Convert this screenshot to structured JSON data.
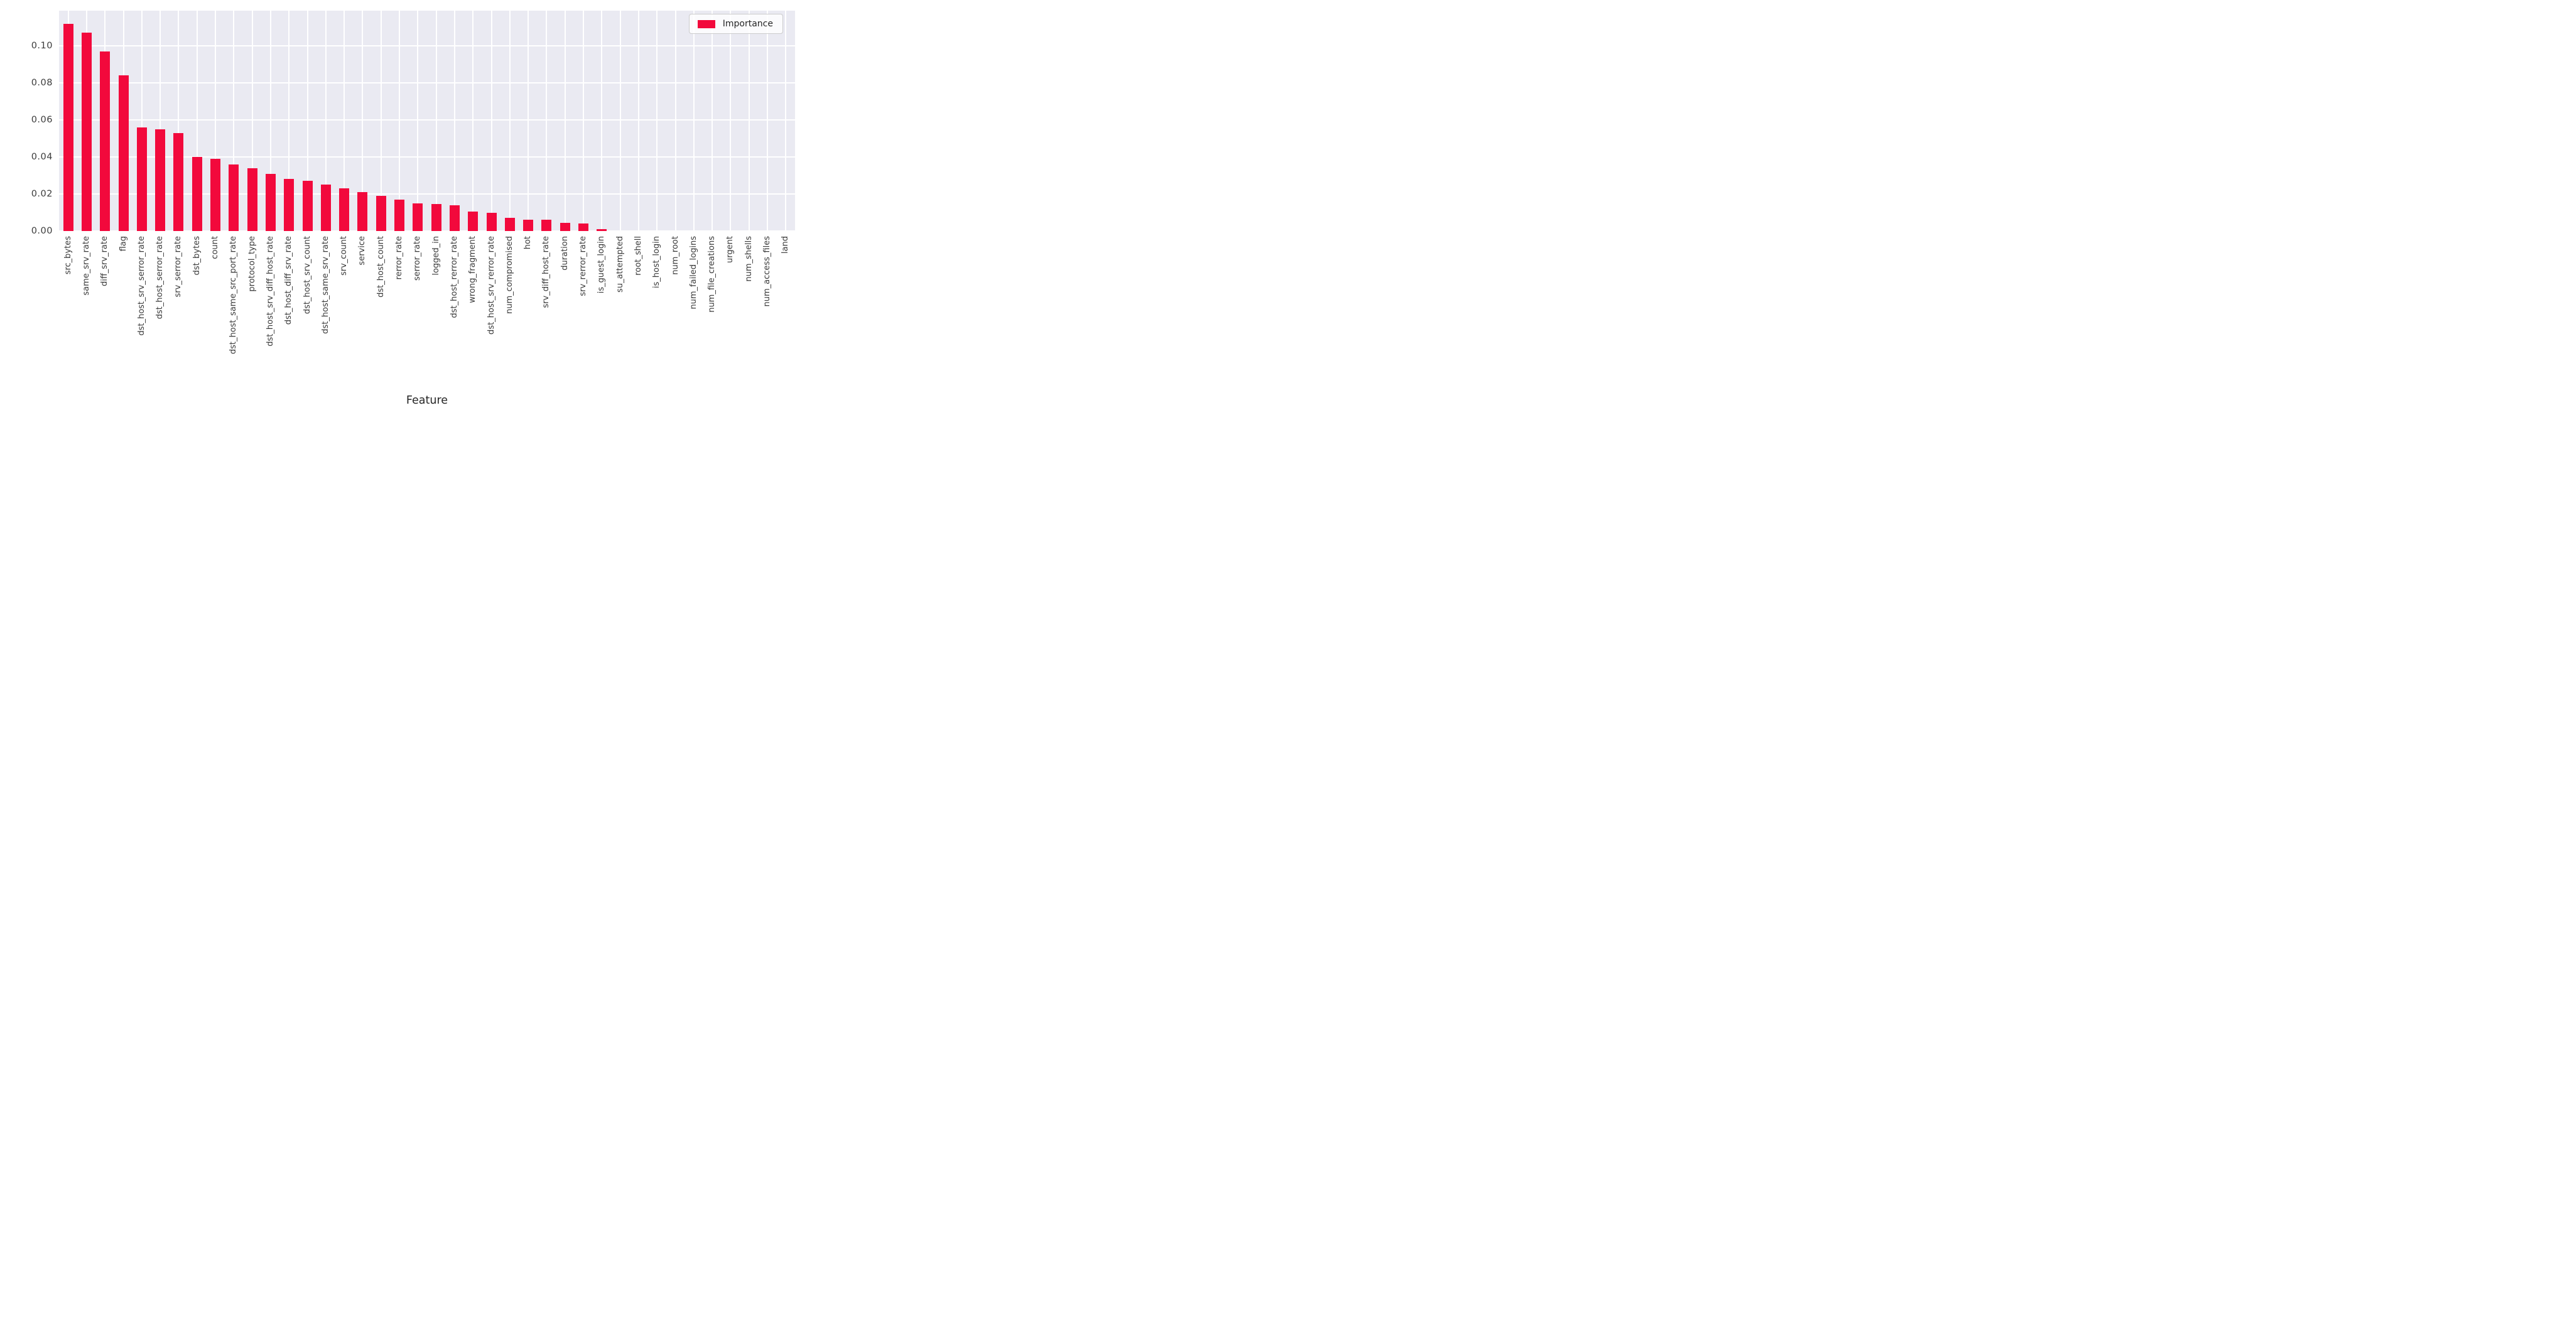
{
  "chart_data": {
    "type": "bar",
    "title": "",
    "xlabel": "Feature",
    "ylabel": "",
    "legend": {
      "label": "Importance",
      "position": "upper right"
    },
    "categories": [
      "src_bytes",
      "same_srv_rate",
      "diff_srv_rate",
      "flag",
      "dst_host_srv_serror_rate",
      "dst_host_serror_rate",
      "srv_serror_rate",
      "dst_bytes",
      "count",
      "dst_host_same_src_port_rate",
      "protocol_type",
      "dst_host_srv_diff_host_rate",
      "dst_host_diff_srv_rate",
      "dst_host_srv_count",
      "dst_host_same_srv_rate",
      "srv_count",
      "service",
      "dst_host_count",
      "rerror_rate",
      "serror_rate",
      "logged_in",
      "dst_host_rerror_rate",
      "wrong_fragment",
      "dst_host_srv_rerror_rate",
      "num_compromised",
      "hot",
      "srv_diff_host_rate",
      "duration",
      "srv_rerror_rate",
      "is_guest_login",
      "su_attempted",
      "root_shell",
      "is_host_login",
      "num_root",
      "num_failed_logins",
      "num_file_creations",
      "urgent",
      "num_shells",
      "num_access_files",
      "land"
    ],
    "values": [
      0.112,
      0.107,
      0.097,
      0.084,
      0.056,
      0.055,
      0.053,
      0.04,
      0.039,
      0.036,
      0.034,
      0.031,
      0.028,
      0.027,
      0.025,
      0.023,
      0.021,
      0.019,
      0.017,
      0.015,
      0.0145,
      0.014,
      0.0105,
      0.01,
      0.007,
      0.006,
      0.006,
      0.0045,
      0.004,
      0.001,
      0.0,
      0.0,
      0.0,
      0.0,
      0.0,
      0.0,
      0.0,
      0.0,
      0.0,
      0.0
    ],
    "ylim": [
      0,
      0.119
    ],
    "yticks": [
      "0.00",
      "0.02",
      "0.04",
      "0.06",
      "0.08",
      "0.10"
    ],
    "ytick_values": [
      0.0,
      0.02,
      0.04,
      0.06,
      0.08,
      0.1
    ],
    "grid": "on",
    "legend_position": "upper right",
    "colors": {
      "bar": "#F2093C",
      "plot_background": "#EAEAF2",
      "gridline": "#FFFFFF",
      "tick_text": "#3b3b3b",
      "label_text": "#262626",
      "legend_border": "#CCCCCC"
    }
  }
}
